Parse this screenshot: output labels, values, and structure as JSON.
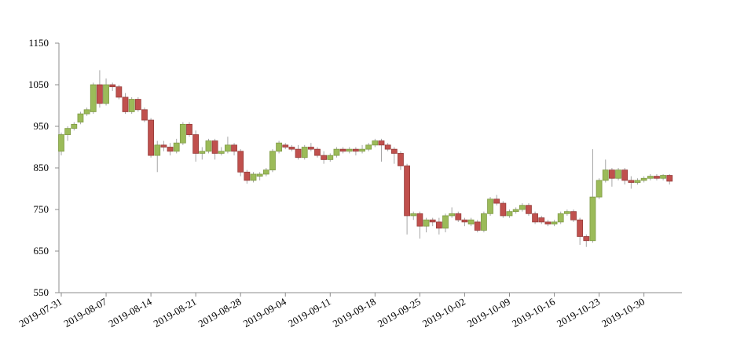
{
  "chart_data": {
    "type": "candlestick",
    "x": [
      "2019-07-31",
      "2019-08-01",
      "2019-08-02",
      "2019-08-03",
      "2019-08-04",
      "2019-08-05",
      "2019-08-06",
      "2019-08-07",
      "2019-08-08",
      "2019-08-09",
      "2019-08-10",
      "2019-08-11",
      "2019-08-12",
      "2019-08-13",
      "2019-08-14",
      "2019-08-15",
      "2019-08-16",
      "2019-08-17",
      "2019-08-18",
      "2019-08-19",
      "2019-08-20",
      "2019-08-21",
      "2019-08-22",
      "2019-08-23",
      "2019-08-24",
      "2019-08-25",
      "2019-08-26",
      "2019-08-27",
      "2019-08-28",
      "2019-08-29",
      "2019-08-30",
      "2019-08-31",
      "2019-09-01",
      "2019-09-02",
      "2019-09-03",
      "2019-09-04",
      "2019-09-05",
      "2019-09-06",
      "2019-09-07",
      "2019-09-08",
      "2019-09-09",
      "2019-09-10",
      "2019-09-11",
      "2019-09-12",
      "2019-09-13",
      "2019-09-14",
      "2019-09-15",
      "2019-09-16",
      "2019-09-17",
      "2019-09-18",
      "2019-09-19",
      "2019-09-20",
      "2019-09-21",
      "2019-09-22",
      "2019-09-23",
      "2019-09-24",
      "2019-09-25",
      "2019-09-26",
      "2019-09-27",
      "2019-09-28",
      "2019-09-29",
      "2019-09-30",
      "2019-10-01",
      "2019-10-02",
      "2019-10-03",
      "2019-10-04",
      "2019-10-05",
      "2019-10-06",
      "2019-10-07",
      "2019-10-08",
      "2019-10-09",
      "2019-10-10",
      "2019-10-11",
      "2019-10-12",
      "2019-10-13",
      "2019-10-14",
      "2019-10-15",
      "2019-10-16",
      "2019-10-17",
      "2019-10-18",
      "2019-10-19",
      "2019-10-20",
      "2019-10-21",
      "2019-10-22",
      "2019-10-23",
      "2019-10-24",
      "2019-10-25",
      "2019-10-26",
      "2019-10-27",
      "2019-10-28",
      "2019-10-29",
      "2019-10-30",
      "2019-10-31",
      "2019-11-01",
      "2019-11-02",
      "2019-11-03"
    ],
    "open": [
      890,
      930,
      945,
      960,
      980,
      985,
      1050,
      1005,
      1050,
      1045,
      1020,
      985,
      1015,
      990,
      965,
      880,
      905,
      900,
      890,
      910,
      955,
      930,
      885,
      890,
      915,
      885,
      890,
      905,
      890,
      840,
      820,
      830,
      835,
      845,
      890,
      905,
      900,
      895,
      875,
      900,
      895,
      880,
      870,
      880,
      895,
      890,
      895,
      890,
      895,
      905,
      915,
      905,
      895,
      885,
      855,
      735,
      740,
      710,
      725,
      720,
      705,
      735,
      740,
      725,
      715,
      720,
      700,
      740,
      775,
      765,
      735,
      745,
      750,
      760,
      740,
      730,
      720,
      715,
      720,
      740,
      745,
      725,
      685,
      675,
      780,
      820,
      845,
      825,
      845,
      820,
      815,
      820,
      825,
      830,
      825,
      832
    ],
    "high": [
      935,
      950,
      960,
      985,
      995,
      1055,
      1085,
      1065,
      1055,
      1050,
      1030,
      1020,
      1020,
      995,
      970,
      915,
      915,
      910,
      920,
      960,
      960,
      940,
      900,
      920,
      920,
      900,
      925,
      910,
      895,
      845,
      840,
      840,
      850,
      895,
      915,
      910,
      905,
      905,
      905,
      910,
      900,
      890,
      885,
      900,
      900,
      900,
      900,
      905,
      910,
      920,
      920,
      910,
      900,
      890,
      860,
      745,
      745,
      730,
      730,
      730,
      740,
      755,
      745,
      730,
      730,
      725,
      745,
      780,
      785,
      770,
      750,
      755,
      765,
      765,
      745,
      735,
      725,
      725,
      745,
      750,
      750,
      730,
      690,
      895,
      825,
      870,
      850,
      850,
      850,
      830,
      825,
      830,
      835,
      835,
      835,
      835
    ],
    "low": [
      880,
      915,
      940,
      955,
      975,
      980,
      995,
      1000,
      1035,
      1015,
      980,
      980,
      985,
      960,
      875,
      840,
      890,
      880,
      885,
      905,
      925,
      865,
      870,
      885,
      870,
      880,
      885,
      880,
      830,
      812,
      815,
      820,
      830,
      840,
      885,
      895,
      890,
      870,
      870,
      890,
      875,
      860,
      865,
      875,
      885,
      885,
      880,
      885,
      890,
      900,
      865,
      890,
      860,
      845,
      690,
      725,
      680,
      695,
      710,
      690,
      695,
      730,
      720,
      710,
      710,
      695,
      695,
      735,
      760,
      730,
      730,
      740,
      745,
      735,
      715,
      715,
      710,
      710,
      715,
      735,
      720,
      665,
      660,
      670,
      775,
      815,
      805,
      820,
      810,
      800,
      810,
      815,
      820,
      820,
      820,
      810
    ],
    "close": [
      930,
      945,
      955,
      980,
      990,
      1050,
      1005,
      1050,
      1045,
      1020,
      985,
      1015,
      990,
      965,
      880,
      905,
      900,
      890,
      910,
      955,
      930,
      885,
      890,
      915,
      885,
      890,
      905,
      890,
      840,
      820,
      835,
      835,
      845,
      890,
      910,
      900,
      895,
      875,
      900,
      895,
      880,
      870,
      880,
      895,
      890,
      895,
      890,
      895,
      905,
      915,
      905,
      895,
      885,
      855,
      735,
      740,
      710,
      725,
      720,
      705,
      735,
      740,
      725,
      720,
      725,
      700,
      740,
      775,
      765,
      735,
      745,
      750,
      760,
      740,
      720,
      720,
      715,
      720,
      740,
      745,
      725,
      685,
      675,
      780,
      820,
      845,
      825,
      845,
      820,
      815,
      820,
      825,
      830,
      825,
      832,
      818
    ],
    "up_color": "#9bbb59",
    "down_color": "#c0504d",
    "wick_color": "#a6a6a6",
    "ylim": [
      550,
      1150
    ],
    "yticks": [
      550,
      650,
      750,
      850,
      950,
      1050,
      1150
    ],
    "xticks": [
      "2019-07-31",
      "2019-08-07",
      "2019-08-14",
      "2019-08-21",
      "2019-08-28",
      "2019-09-04",
      "2019-09-11",
      "2019-09-18",
      "2019-09-25",
      "2019-10-02",
      "2019-10-09",
      "2019-10-16",
      "2019-10-23",
      "2019-10-30"
    ]
  }
}
